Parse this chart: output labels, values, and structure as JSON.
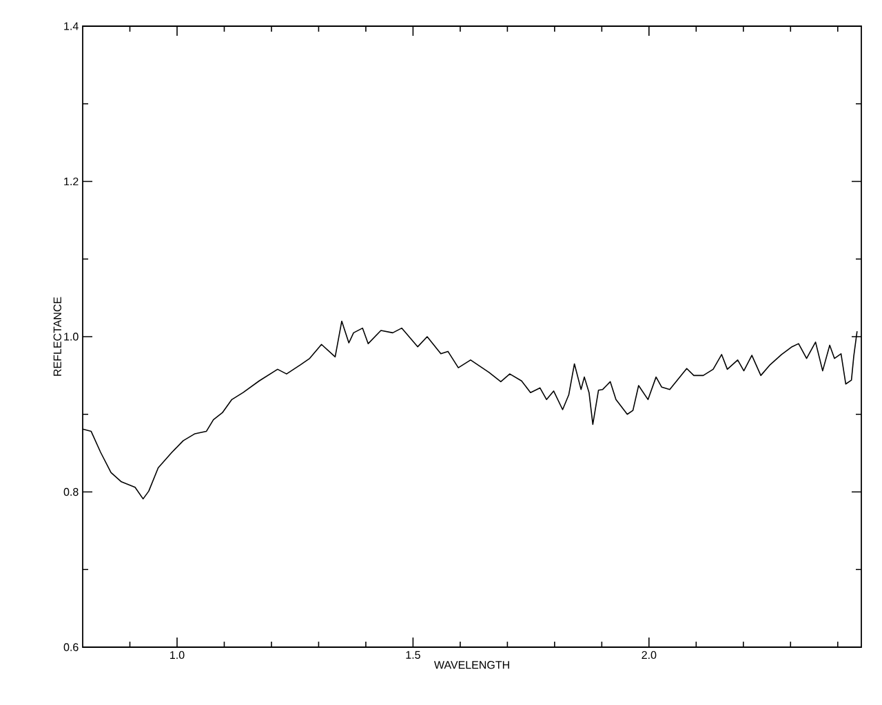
{
  "chart_data": {
    "type": "line",
    "xlabel": "WAVELENGTH",
    "ylabel": "REFLECTANCE",
    "xlim": [
      0.8,
      2.45
    ],
    "ylim": [
      0.6,
      1.4
    ],
    "xticks": [
      {
        "value": 0.9,
        "label": null
      },
      {
        "value": 1.0,
        "label": "1.0"
      },
      {
        "value": 1.1,
        "label": null
      },
      {
        "value": 1.2,
        "label": null
      },
      {
        "value": 1.3,
        "label": null
      },
      {
        "value": 1.4,
        "label": null
      },
      {
        "value": 1.5,
        "label": "1.5"
      },
      {
        "value": 1.6,
        "label": null
      },
      {
        "value": 1.7,
        "label": null
      },
      {
        "value": 1.8,
        "label": null
      },
      {
        "value": 1.9,
        "label": null
      },
      {
        "value": 2.0,
        "label": "2.0"
      },
      {
        "value": 2.1,
        "label": null
      },
      {
        "value": 2.2,
        "label": null
      },
      {
        "value": 2.3,
        "label": null
      },
      {
        "value": 2.4,
        "label": null
      }
    ],
    "yticks": [
      {
        "value": 0.6,
        "label": "0.6"
      },
      {
        "value": 0.7,
        "label": null
      },
      {
        "value": 0.8,
        "label": "0.8"
      },
      {
        "value": 0.9,
        "label": null
      },
      {
        "value": 1.0,
        "label": "1.0"
      },
      {
        "value": 1.1,
        "label": null
      },
      {
        "value": 1.2,
        "label": "1.2"
      },
      {
        "value": 1.3,
        "label": null
      },
      {
        "value": 1.4,
        "label": "1.4"
      }
    ],
    "grid": false,
    "marker": "none",
    "line_style": "solid",
    "series": [
      {
        "color": "#000000",
        "x": [
          0.8,
          0.818,
          0.838,
          0.86,
          0.882,
          0.911,
          0.928,
          0.94,
          0.96,
          0.989,
          1.013,
          1.038,
          1.062,
          1.077,
          1.096,
          1.116,
          1.14,
          1.174,
          1.213,
          1.232,
          1.262,
          1.281,
          1.306,
          1.335,
          1.349,
          1.364,
          1.374,
          1.393,
          1.405,
          1.432,
          1.457,
          1.476,
          1.51,
          1.53,
          1.559,
          1.574,
          1.596,
          1.622,
          1.661,
          1.686,
          1.705,
          1.73,
          1.749,
          1.769,
          1.783,
          1.798,
          1.817,
          1.83,
          1.842,
          1.856,
          1.863,
          1.873,
          1.881,
          1.893,
          1.902,
          1.91,
          1.918,
          1.93,
          1.954,
          1.966,
          1.978,
          1.998,
          2.015,
          2.027,
          2.044,
          2.08,
          2.095,
          2.115,
          2.136,
          2.154,
          2.166,
          2.188,
          2.201,
          2.218,
          2.237,
          2.257,
          2.281,
          2.303,
          2.317,
          2.334,
          2.353,
          2.368,
          2.383,
          2.393,
          2.407,
          2.417,
          2.429,
          2.434,
          2.441
        ],
        "values": [
          0.881,
          0.878,
          0.851,
          0.825,
          0.813,
          0.806,
          0.791,
          0.801,
          0.831,
          0.851,
          0.866,
          0.875,
          0.878,
          0.893,
          0.902,
          0.919,
          0.928,
          0.943,
          0.958,
          0.952,
          0.964,
          0.972,
          0.99,
          0.974,
          1.02,
          0.992,
          1.005,
          1.011,
          0.991,
          1.008,
          1.005,
          1.011,
          0.987,
          1.0,
          0.978,
          0.981,
          0.96,
          0.97,
          0.954,
          0.942,
          0.952,
          0.943,
          0.928,
          0.934,
          0.919,
          0.93,
          0.906,
          0.925,
          0.965,
          0.932,
          0.948,
          0.928,
          0.887,
          0.931,
          0.932,
          0.937,
          0.942,
          0.919,
          0.9,
          0.905,
          0.937,
          0.919,
          0.948,
          0.935,
          0.932,
          0.959,
          0.95,
          0.95,
          0.958,
          0.977,
          0.958,
          0.97,
          0.956,
          0.976,
          0.95,
          0.964,
          0.977,
          0.987,
          0.991,
          0.972,
          0.993,
          0.956,
          0.989,
          0.972,
          0.978,
          0.939,
          0.944,
          0.975,
          1.007
        ]
      }
    ]
  }
}
